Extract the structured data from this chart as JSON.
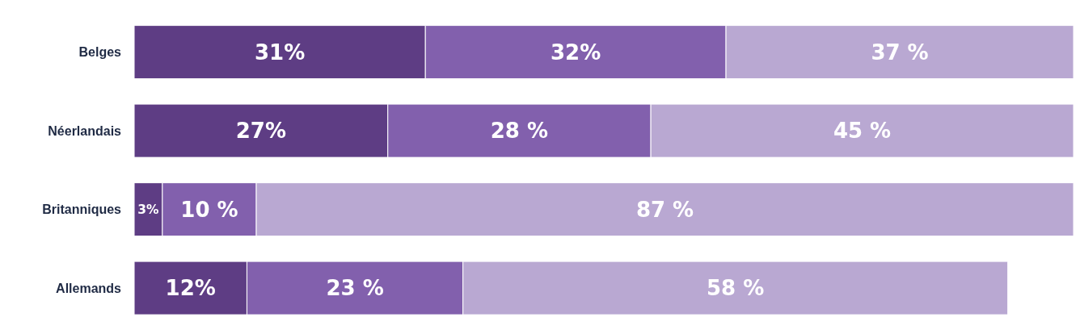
{
  "chart_data": {
    "type": "bar",
    "orientation": "horizontal",
    "stacked": true,
    "categories": [
      "Belges",
      "Néerlandais",
      "Britanniques",
      "Allemands"
    ],
    "xlim": [
      0,
      100
    ],
    "tick_labels": "y",
    "grid": false,
    "legend": false,
    "series": [
      {
        "color": "#5e3d84",
        "values": [
          31,
          27,
          3,
          12
        ],
        "value_labels": [
          "31%",
          "27%",
          "3%",
          "12%"
        ]
      },
      {
        "color": "#8260ad",
        "values": [
          32,
          28,
          10,
          23
        ],
        "value_labels": [
          "32%",
          "28 %",
          "10 %",
          "23 %"
        ]
      },
      {
        "color": "#b9a8d2",
        "values": [
          37,
          45,
          87,
          58
        ],
        "value_labels": [
          "37 %",
          "45 %",
          "87 %",
          "58 %"
        ]
      }
    ]
  }
}
